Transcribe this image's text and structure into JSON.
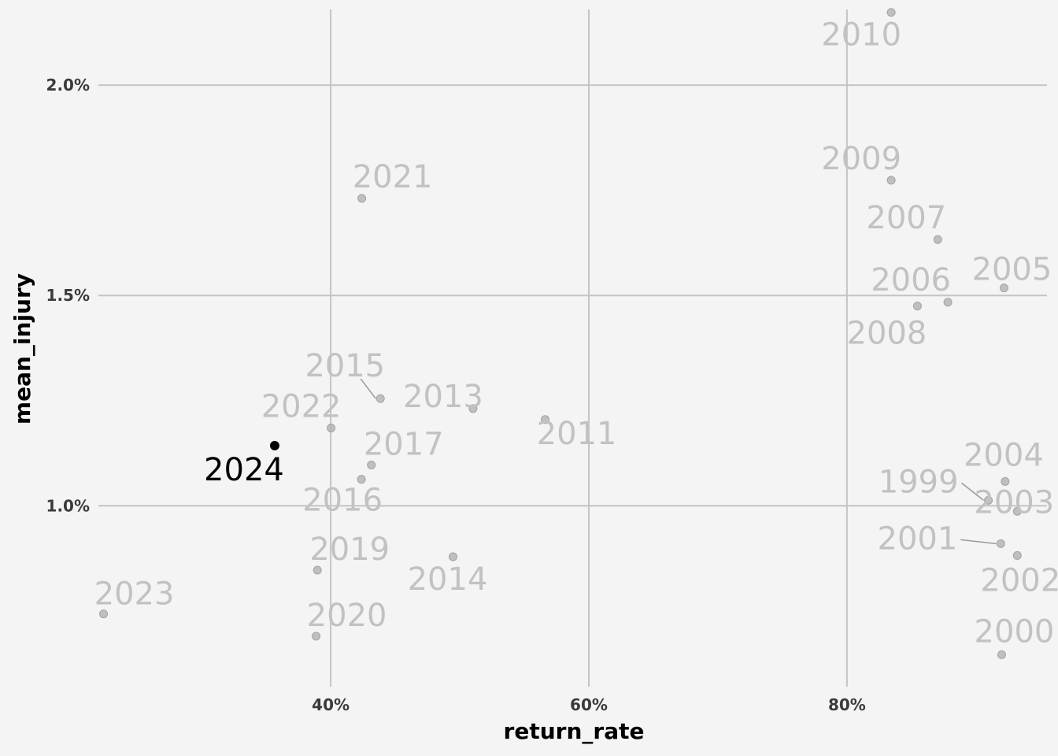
{
  "chart_data": {
    "type": "scatter",
    "xlabel": "return_rate",
    "ylabel": "mean_injury",
    "x_ticks": [
      {
        "value": 0.4,
        "label": "40%"
      },
      {
        "value": 0.6,
        "label": "60%"
      },
      {
        "value": 0.8,
        "label": "80%"
      }
    ],
    "y_ticks": [
      {
        "value": 0.01,
        "label": "1.0%"
      },
      {
        "value": 0.015,
        "label": "1.5%"
      },
      {
        "value": 0.02,
        "label": "2.0%"
      }
    ],
    "xlim": [
      0.22,
      0.955
    ],
    "ylim": [
      0.0057,
      0.0218
    ],
    "grid": true,
    "legend": "none",
    "colors": {
      "background": "#f4f4f4",
      "grid": "#c4c4c4",
      "muted_point": "#b5b5b5",
      "muted_label": "#c2c2c2",
      "highlight": "#000000"
    },
    "points": [
      {
        "year": "1999",
        "x": 0.9096,
        "y": 0.01013,
        "highlight": false
      },
      {
        "year": "2000",
        "x": 0.9199,
        "y": 0.00646,
        "highlight": false
      },
      {
        "year": "2001",
        "x": 0.9192,
        "y": 0.0091,
        "highlight": false
      },
      {
        "year": "2002",
        "x": 0.932,
        "y": 0.00882,
        "highlight": false
      },
      {
        "year": "2003",
        "x": 0.932,
        "y": 0.00987,
        "highlight": false
      },
      {
        "year": "2004",
        "x": 0.9226,
        "y": 0.01058,
        "highlight": false
      },
      {
        "year": "2005",
        "x": 0.9217,
        "y": 0.01518,
        "highlight": false
      },
      {
        "year": "2006",
        "x": 0.8782,
        "y": 0.01484,
        "highlight": false
      },
      {
        "year": "2007",
        "x": 0.8704,
        "y": 0.01633,
        "highlight": false
      },
      {
        "year": "2008",
        "x": 0.8546,
        "y": 0.01475,
        "highlight": false
      },
      {
        "year": "2009",
        "x": 0.8343,
        "y": 0.01774,
        "highlight": false
      },
      {
        "year": "2010",
        "x": 0.8343,
        "y": 0.02173,
        "highlight": false
      },
      {
        "year": "2011",
        "x": 0.5662,
        "y": 0.01205,
        "highlight": false
      },
      {
        "year": "2013",
        "x": 0.5103,
        "y": 0.01231,
        "highlight": false
      },
      {
        "year": "2014",
        "x": 0.4948,
        "y": 0.00879,
        "highlight": false
      },
      {
        "year": "2015",
        "x": 0.4385,
        "y": 0.01255,
        "highlight": false
      },
      {
        "year": "2016",
        "x": 0.4238,
        "y": 0.01063,
        "highlight": false
      },
      {
        "year": "2017",
        "x": 0.4315,
        "y": 0.01097,
        "highlight": false
      },
      {
        "year": "2019",
        "x": 0.3897,
        "y": 0.00847,
        "highlight": false
      },
      {
        "year": "2020",
        "x": 0.3887,
        "y": 0.0069,
        "highlight": false
      },
      {
        "year": "2021",
        "x": 0.4241,
        "y": 0.01731,
        "highlight": false
      },
      {
        "year": "2022",
        "x": 0.4003,
        "y": 0.01185,
        "highlight": false
      },
      {
        "year": "2023",
        "x": 0.224,
        "y": 0.00743,
        "highlight": false
      },
      {
        "year": "2024",
        "x": 0.3566,
        "y": 0.01143,
        "highlight": true
      }
    ]
  }
}
